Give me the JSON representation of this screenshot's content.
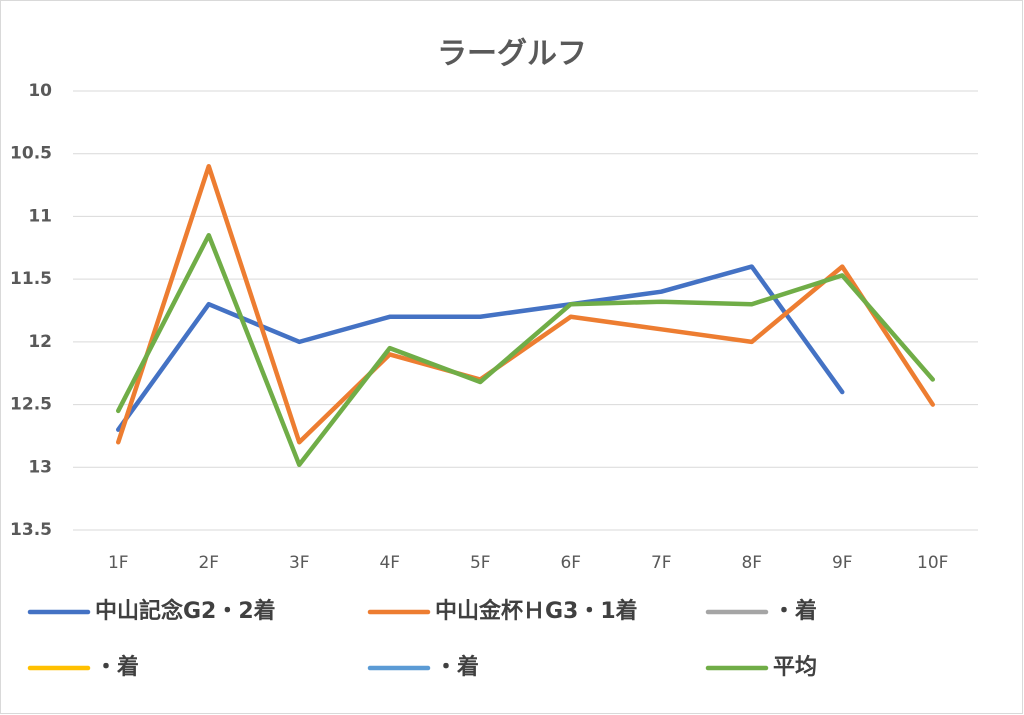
{
  "chart_data": {
    "type": "line",
    "title": "ラーグルフ",
    "categories": [
      "1F",
      "2F",
      "3F",
      "4F",
      "5F",
      "6F",
      "7F",
      "8F",
      "9F",
      "10F"
    ],
    "series": [
      {
        "name": "中山記念G2・2着",
        "color": "#4472c4",
        "values": [
          12.7,
          11.7,
          12.0,
          11.8,
          11.8,
          11.7,
          11.6,
          11.4,
          12.4,
          null
        ]
      },
      {
        "name": "中山金杯ＨG3・1着",
        "color": "#ed7d31",
        "values": [
          12.8,
          10.6,
          12.8,
          12.1,
          12.3,
          11.8,
          11.9,
          12.0,
          11.4,
          12.5
        ]
      },
      {
        "name": "・着",
        "color": "#a5a5a5",
        "values": [
          null,
          null,
          null,
          null,
          null,
          null,
          null,
          null,
          null,
          null
        ]
      },
      {
        "name": "・着",
        "color": "#ffc000",
        "values": [
          null,
          null,
          null,
          null,
          null,
          null,
          null,
          null,
          null,
          null
        ]
      },
      {
        "name": "・着",
        "color": "#5b9bd5",
        "values": [
          null,
          null,
          null,
          null,
          null,
          null,
          null,
          null,
          null,
          null
        ]
      },
      {
        "name": "平均",
        "color": "#70ad47",
        "values": [
          12.55,
          11.15,
          12.98,
          12.05,
          12.32,
          11.7,
          11.68,
          11.7,
          11.47,
          12.3
        ]
      }
    ],
    "ylim": [
      10,
      13.5
    ],
    "yticks": [
      10,
      10.5,
      11,
      11.5,
      12,
      12.5,
      13,
      13.5
    ],
    "y_inverted": true,
    "grid": true,
    "legend": "bottom"
  }
}
